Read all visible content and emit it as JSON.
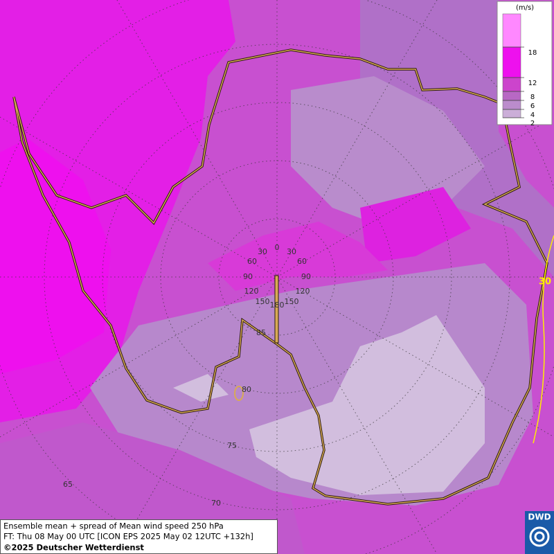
{
  "legend": {
    "unit": "(m/s)",
    "ticks": [
      18,
      12,
      8,
      6,
      4,
      2
    ],
    "colors": [
      "#ff88ff",
      "#ee11ee",
      "#cc44cc",
      "#b868c4",
      "#bb8ccc",
      "#cbaed8"
    ]
  },
  "longitude_labels": {
    "top": "0",
    "left": [
      "30",
      "60",
      "90",
      "120",
      "150"
    ],
    "right": [
      "30",
      "60",
      "90",
      "120",
      "150"
    ],
    "bottom": "180"
  },
  "latitude_labels": [
    "85",
    "80",
    "75",
    "70",
    "65"
  ],
  "contour_label": "30",
  "caption": {
    "line1": "Ensemble mean + spread of Mean wind speed 250 hPa",
    "line2": "FT: Thu 08 May 00 UTC [ICON EPS 2025 May 02 12UTC +132h]",
    "line3": "©2025 Deutscher Wetterdienst"
  },
  "logo": "DWD"
}
